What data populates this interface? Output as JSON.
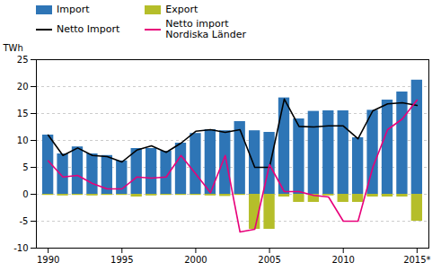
{
  "chart_data": {
    "type": "bar",
    "ylabel": "TWh",
    "x": [
      1990,
      1991,
      1992,
      1993,
      1994,
      1995,
      1996,
      1997,
      1998,
      1999,
      2000,
      2001,
      2002,
      2003,
      2004,
      2005,
      2006,
      2007,
      2008,
      2009,
      2010,
      2011,
      2012,
      2013,
      2014,
      2015
    ],
    "series": [
      {
        "name": "Import",
        "type": "bar",
        "color": "#2e75b6",
        "values": [
          11.0,
          7.5,
          8.8,
          7.5,
          7.2,
          6.2,
          8.5,
          8.5,
          8.0,
          9.5,
          11.3,
          12.0,
          11.8,
          13.5,
          11.8,
          11.5,
          17.9,
          14.0,
          15.4,
          15.5,
          15.5,
          10.5,
          15.6,
          17.5,
          19.0,
          21.2
        ]
      },
      {
        "name": "Export",
        "type": "bar",
        "color": "#b5be2a",
        "values": [
          -0.2,
          -0.3,
          -0.2,
          -0.3,
          -0.2,
          -0.2,
          -0.5,
          -0.3,
          -0.2,
          -0.2,
          -0.2,
          -0.3,
          -0.4,
          -0.2,
          -6.5,
          -6.5,
          -0.5,
          -1.5,
          -1.5,
          -0.3,
          -1.5,
          -1.5,
          -0.5,
          -0.5,
          -0.5,
          -5.0
        ]
      },
      {
        "name": "Netto Import",
        "type": "line",
        "color": "#000000",
        "values": [
          11.0,
          7.2,
          8.6,
          7.2,
          7.0,
          6.0,
          8.2,
          9.0,
          7.8,
          9.5,
          11.7,
          12.0,
          11.5,
          12.0,
          5.0,
          5.0,
          17.7,
          12.6,
          12.5,
          12.7,
          12.7,
          10.3,
          15.5,
          16.8,
          17.0,
          16.5
        ]
      },
      {
        "name": "Netto import\nNordiska Länder",
        "type": "line",
        "color": "#e8007a",
        "values": [
          6.2,
          3.2,
          3.5,
          2.0,
          1.0,
          1.0,
          3.2,
          3.0,
          3.2,
          7.2,
          3.8,
          0.3,
          7.2,
          -7.0,
          -6.5,
          5.5,
          0.5,
          0.5,
          -0.2,
          -0.5,
          -5.0,
          -5.0,
          5.0,
          12.0,
          14.0,
          17.5
        ]
      }
    ],
    "xlim": [
      1989.2,
      2015.8
    ],
    "xticks": [
      1990,
      1995,
      2000,
      2005,
      2010,
      {
        "value": 2015,
        "label": "2015*"
      }
    ],
    "ylim": [
      -10,
      25
    ],
    "yticks": [
      -10,
      -5,
      0,
      5,
      10,
      15,
      20,
      25
    ],
    "grid": true,
    "legend": "top"
  }
}
